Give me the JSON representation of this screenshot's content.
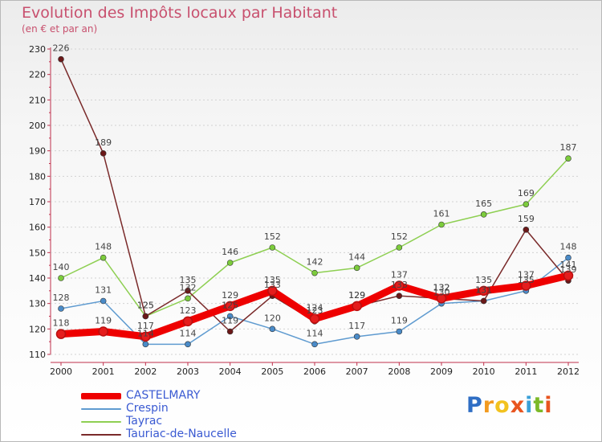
{
  "chart_data": {
    "type": "line",
    "title": "Evolution des Impôts locaux par Habitant",
    "subtitle": "(en € et par an)",
    "x": [
      "2000",
      "2001",
      "2002",
      "2003",
      "2004",
      "2005",
      "2006",
      "2007",
      "2008",
      "2009",
      "2010",
      "2011",
      "2012"
    ],
    "ylim": [
      110,
      230
    ],
    "yticks": [
      110,
      120,
      130,
      140,
      150,
      160,
      170,
      180,
      190,
      200,
      210,
      220,
      230
    ],
    "series": [
      {
        "name": "Crespin",
        "color": "#5f9bd0",
        "dot": "#4a8bc8",
        "values": [
          128,
          131,
          114,
          114,
          125,
          120,
          114,
          117,
          119,
          130,
          131,
          135,
          148
        ],
        "labels": [
          "128",
          "131",
          "114",
          "114",
          "125",
          "120",
          "114",
          "117",
          "119",
          "130",
          "131",
          "135",
          "148"
        ]
      },
      {
        "name": "Tayrac",
        "color": "#8ecf52",
        "dot": "#7ccc3c",
        "values": [
          140,
          148,
          125,
          132,
          146,
          152,
          142,
          144,
          152,
          161,
          165,
          169,
          187
        ],
        "labels": [
          "140",
          "148",
          "125",
          "132",
          "146",
          "152",
          "142",
          "144",
          "152",
          "161",
          "165",
          "169",
          "187"
        ]
      },
      {
        "name": "Tauriac-de-Naucelle",
        "color": "#7a2a2a",
        "dot": "#6b1818",
        "values": [
          226,
          189,
          125,
          135,
          119,
          133,
          123,
          129,
          133,
          132,
          131,
          159,
          139
        ],
        "labels": [
          "226",
          "189",
          "125",
          "135",
          "119",
          "133",
          "123",
          "129",
          "133",
          "132",
          "131",
          "159",
          "139"
        ]
      },
      {
        "name": "CASTELMARY",
        "color": "#ee0000",
        "dot": "#e51d1d",
        "values": [
          118,
          119,
          117,
          123,
          129,
          135,
          124,
          129,
          137,
          132,
          135,
          137,
          141
        ],
        "labels": [
          "118",
          "119",
          "117",
          "123",
          "129",
          "135",
          "124",
          "129",
          "137",
          "132",
          "135",
          "137",
          "141"
        ]
      }
    ],
    "legend": [
      "CASTELMARY",
      "Crespin",
      "Tayrac",
      "Tauriac-de-Naucelle"
    ],
    "legend_position": "bottom-left"
  },
  "brand": {
    "letters": [
      "P",
      "r",
      "o",
      "x",
      "i",
      "t",
      "i"
    ],
    "colors": [
      "#2f6ec4",
      "#f29a1f",
      "#f2c21f",
      "#e8541f",
      "#3aa0d8",
      "#7cb928",
      "#e8541f"
    ]
  }
}
